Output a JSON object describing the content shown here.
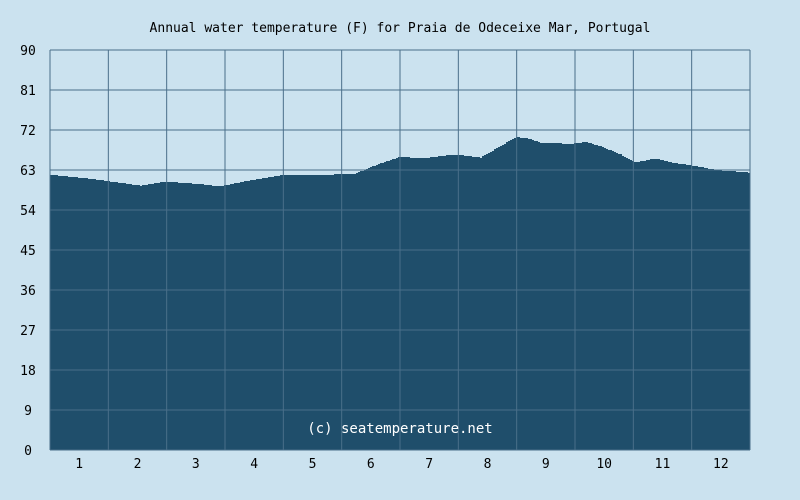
{
  "chart_data": {
    "type": "area",
    "title": "Annual water temperature (F) for Praia de Odeceixe Mar, Portugal",
    "watermark": "(c) seatemperature.net",
    "xlabel": "",
    "ylabel": "",
    "x_ticks": [
      "1",
      "2",
      "3",
      "4",
      "5",
      "6",
      "7",
      "8",
      "9",
      "10",
      "11",
      "12"
    ],
    "y_ticks": [
      0,
      9,
      18,
      27,
      36,
      45,
      54,
      63,
      72,
      81,
      90
    ],
    "xlim": [
      0.5,
      12.5
    ],
    "ylim": [
      0,
      90
    ],
    "grid": true,
    "colors": {
      "fill": "#1f4e6b",
      "background": "#cbe2ef",
      "grid": "#4a6f8a"
    },
    "x": [
      0.52,
      1.19,
      2.04,
      2.47,
      3.07,
      3.38,
      3.93,
      4.49,
      5.47,
      5.73,
      6.07,
      6.5,
      6.84,
      7.44,
      7.87,
      8.21,
      8.47,
      8.69,
      8.9,
      9.41,
      9.67,
      9.93,
      10.27,
      10.53,
      10.87,
      11.13,
      11.47,
      11.9,
      12.5
    ],
    "values": [
      61.9,
      61.0,
      59.5,
      60.4,
      59.8,
      59.3,
      60.7,
      61.9,
      62.0,
      62.2,
      64.1,
      66.0,
      65.6,
      66.5,
      65.8,
      68.4,
      70.4,
      70.1,
      69.1,
      68.9,
      69.3,
      68.3,
      66.5,
      64.7,
      65.6,
      64.7,
      64.1,
      63.0,
      62.4
    ]
  }
}
